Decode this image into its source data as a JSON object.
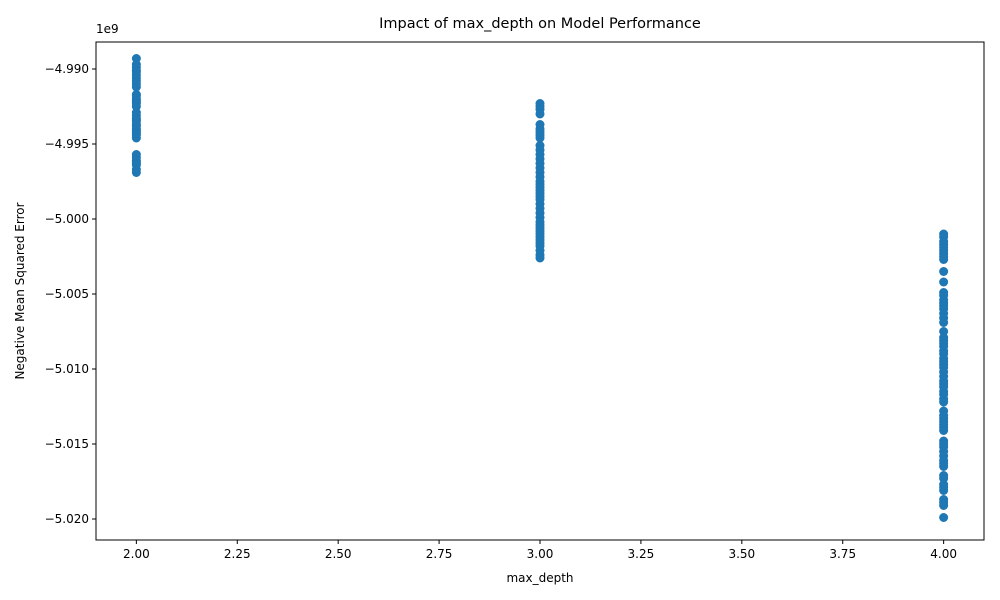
{
  "chart_data": {
    "type": "scatter",
    "title": "Impact of max_depth on Model Performance",
    "xlabel": "max_depth",
    "ylabel": "Negative Mean Squared Error",
    "y_offset_label": "1e9",
    "xlim": [
      1.9,
      4.1
    ],
    "ylim": [
      -5.0214,
      -4.9882
    ],
    "x_ticks": [
      2.0,
      2.25,
      2.5,
      2.75,
      3.0,
      3.25,
      3.5,
      3.75,
      4.0
    ],
    "x_tick_labels": [
      "2.00",
      "2.25",
      "2.50",
      "2.75",
      "3.00",
      "3.25",
      "3.50",
      "3.75",
      "4.00"
    ],
    "y_ticks": [
      -4.99,
      -4.995,
      -5.0,
      -5.005,
      -5.01,
      -5.015,
      -5.02
    ],
    "y_tick_labels": [
      "−4.990",
      "−4.995",
      "−5.000",
      "−5.005",
      "−5.010",
      "−5.015",
      "−5.020"
    ],
    "grid": false,
    "marker_color": "#1f77b4",
    "series": [
      {
        "x": [
          2,
          2,
          2,
          2,
          2,
          2,
          2,
          2,
          2,
          2,
          2,
          2,
          2,
          2,
          2,
          2,
          2,
          2,
          2,
          2,
          2,
          2,
          2,
          2,
          2,
          2,
          2,
          2,
          2,
          2,
          2,
          2,
          2,
          2,
          2,
          2,
          2,
          2
        ],
        "y": [
          -4.9893,
          -4.9897,
          -4.9899,
          -4.9901,
          -4.9902,
          -4.9904,
          -4.9906,
          -4.9908,
          -4.991,
          -4.9912,
          -4.9917,
          -4.9918,
          -4.992,
          -4.9921,
          -4.9922,
          -4.9923,
          -4.9925,
          -4.9929,
          -4.9931,
          -4.9933,
          -4.9934,
          -4.9935,
          -4.9937,
          -4.9938,
          -4.994,
          -4.9941,
          -4.9942,
          -4.9943,
          -4.9944,
          -4.9946,
          -4.9957,
          -4.9959,
          -4.9961,
          -4.9962,
          -4.9963,
          -4.9964,
          -4.9967,
          -4.9969
        ]
      },
      {
        "x": [
          3,
          3,
          3,
          3,
          3,
          3,
          3,
          3,
          3,
          3,
          3,
          3,
          3,
          3,
          3,
          3,
          3,
          3,
          3,
          3,
          3,
          3,
          3,
          3,
          3,
          3,
          3,
          3,
          3,
          3,
          3,
          3,
          3,
          3,
          3,
          3,
          3,
          3,
          3,
          3
        ],
        "y": [
          -4.9923,
          -4.9925,
          -4.9927,
          -4.993,
          -4.9937,
          -4.994,
          -4.9942,
          -4.9944,
          -4.9946,
          -4.9951,
          -4.9954,
          -4.9957,
          -4.996,
          -4.9963,
          -4.9966,
          -4.9969,
          -4.9972,
          -4.9975,
          -4.9977,
          -4.9979,
          -4.9981,
          -4.9983,
          -4.9985,
          -4.9987,
          -4.999,
          -4.9993,
          -4.9996,
          -4.9999,
          -5.0002,
          -5.0004,
          -5.0006,
          -5.0008,
          -5.001,
          -5.0012,
          -5.0014,
          -5.0016,
          -5.0018,
          -5.0021,
          -5.0024,
          -5.0026
        ]
      },
      {
        "x": [
          4,
          4,
          4,
          4,
          4,
          4,
          4,
          4,
          4,
          4,
          4,
          4,
          4,
          4,
          4,
          4,
          4,
          4,
          4,
          4,
          4,
          4,
          4,
          4,
          4,
          4,
          4,
          4,
          4,
          4,
          4,
          4,
          4,
          4,
          4,
          4,
          4,
          4,
          4,
          4,
          4,
          4,
          4,
          4,
          4,
          4,
          4,
          4,
          4,
          4,
          4,
          4,
          4,
          4,
          4,
          4,
          4,
          4,
          4,
          4,
          4,
          4,
          4,
          4
        ],
        "y": [
          -5.001,
          -5.0012,
          -5.0015,
          -5.0017,
          -5.0019,
          -5.0021,
          -5.0023,
          -5.0025,
          -5.0027,
          -5.0035,
          -5.0042,
          -5.0049,
          -5.0051,
          -5.0054,
          -5.0056,
          -5.0058,
          -5.006,
          -5.0063,
          -5.0066,
          -5.0069,
          -5.0075,
          -5.0079,
          -5.0081,
          -5.0083,
          -5.0085,
          -5.0088,
          -5.009,
          -5.0093,
          -5.0095,
          -5.0097,
          -5.0099,
          -5.0102,
          -5.0105,
          -5.0108,
          -5.011,
          -5.0112,
          -5.0115,
          -5.0117,
          -5.012,
          -5.0122,
          -5.0128,
          -5.0131,
          -5.0133,
          -5.0135,
          -5.0137,
          -5.0139,
          -5.0141,
          -5.0148,
          -5.015,
          -5.0152,
          -5.0155,
          -5.0158,
          -5.0161,
          -5.0163,
          -5.0165,
          -5.0171,
          -5.0173,
          -5.0177,
          -5.0179,
          -5.0181,
          -5.0187,
          -5.0189,
          -5.0191,
          -5.0199
        ]
      }
    ]
  }
}
